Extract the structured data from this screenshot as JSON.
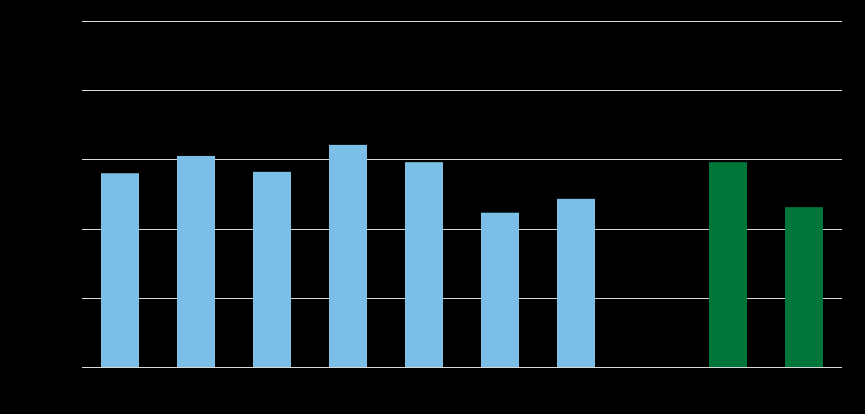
{
  "chart_data": {
    "type": "bar",
    "categories": [
      null,
      null,
      null,
      null,
      null,
      null,
      null,
      null,
      null,
      null
    ],
    "series": [
      {
        "color": "#7bbfe6",
        "values": [
          2.8,
          3.05,
          2.82,
          3.21,
          2.96,
          2.23,
          2.43,
          null,
          null,
          null
        ]
      },
      {
        "color": "#00753a",
        "values": [
          null,
          null,
          null,
          null,
          null,
          null,
          null,
          null,
          2.96,
          2.31
        ]
      }
    ],
    "ylim": [
      0,
      5
    ],
    "yticks": [
      0,
      1,
      2,
      3,
      4,
      5
    ],
    "grid": true
  }
}
